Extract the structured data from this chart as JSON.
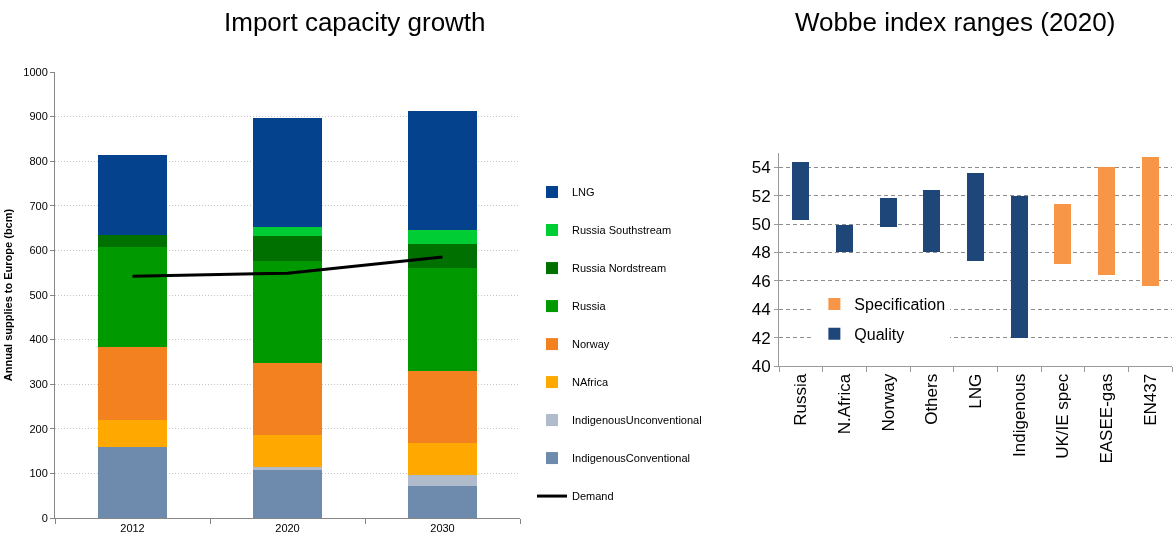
{
  "chart_data": [
    {
      "type": "bar",
      "title": "Import capacity growth",
      "ylabel": "Annual supplies to Europe (bcm)",
      "categories": [
        "2012",
        "2020",
        "2030"
      ],
      "stacked": true,
      "ylim": [
        0,
        1000
      ],
      "yticks": [
        0,
        100,
        200,
        300,
        400,
        500,
        600,
        700,
        800,
        900,
        1000
      ],
      "grid": "y",
      "legend": "right",
      "series": [
        {
          "name": "IndigenousConventional",
          "color": "#6e8aac",
          "values": [
            160,
            107,
            71
          ]
        },
        {
          "name": "IndigenousUnconventional",
          "color": "#b0bccb",
          "values": [
            0,
            8,
            26
          ]
        },
        {
          "name": "NAfrica",
          "color": "#fea800",
          "values": [
            60,
            71,
            71
          ]
        },
        {
          "name": "Norway",
          "color": "#f48120",
          "values": [
            163,
            162,
            162
          ]
        },
        {
          "name": "Russia",
          "color": "#009a00",
          "values": [
            224,
            228,
            230
          ]
        },
        {
          "name": "Russia Nordstream",
          "color": "#007000",
          "values": [
            28,
            56,
            54
          ]
        },
        {
          "name": "Russia Southstream",
          "color": "#00cc33",
          "values": [
            0,
            21,
            31
          ]
        },
        {
          "name": "LNG",
          "color": "#05428d",
          "values": [
            180,
            243,
            267
          ]
        },
        {
          "name": "Demand",
          "type": "line",
          "color": "#000000",
          "values": [
            542,
            549,
            585
          ]
        }
      ]
    },
    {
      "type": "bar",
      "title": "Wobbe index ranges (2020)",
      "categories": [
        "Russia",
        "N.Africa",
        "Norway",
        "Others",
        "LNG",
        "Indigenous",
        "UK/IE spec",
        "EASEE-gas",
        "EN437"
      ],
      "ylim": [
        40,
        55
      ],
      "yticks": [
        40,
        42,
        44,
        46,
        48,
        50,
        52,
        54
      ],
      "grid": "y",
      "legend": "left",
      "series": [
        {
          "name": "Quality",
          "color": "#1f4678",
          "base": [
            50.3,
            48.0,
            49.8,
            48.0,
            47.4,
            42.0,
            null,
            null,
            null
          ],
          "values": [
            4.1,
            1.9,
            2.0,
            4.4,
            6.2,
            10.0,
            null,
            null,
            null
          ]
        },
        {
          "name": "Specification",
          "color": "#f79646",
          "base": [
            null,
            null,
            null,
            null,
            null,
            null,
            47.2,
            46.4,
            45.6
          ],
          "values": [
            null,
            null,
            null,
            null,
            null,
            null,
            4.2,
            7.6,
            9.1
          ]
        }
      ]
    }
  ]
}
